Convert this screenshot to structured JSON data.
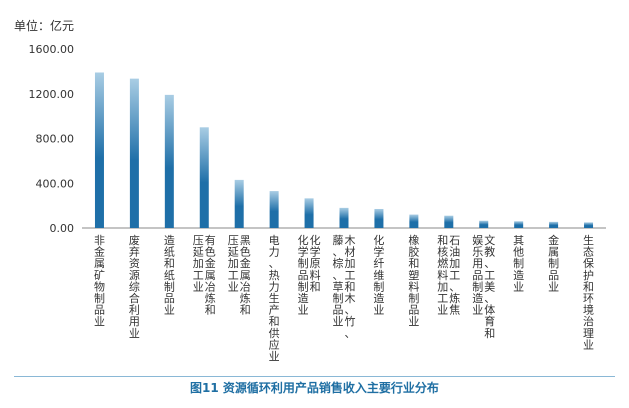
{
  "caption": "图11  资源循环利用产品销售收入主要行业分布",
  "chart_data": {
    "type": "bar",
    "unit_label": "单位：亿元",
    "ylim": [
      0,
      1600
    ],
    "yticks": [
      0,
      400,
      800,
      1200,
      1600
    ],
    "ytick_labels": [
      "0.00",
      "400.00",
      "800.00",
      "1200.00",
      "1600.00"
    ],
    "grid": false,
    "bar_color_top": "#a9cde4",
    "bar_color_bottom": "#1e6fa8",
    "categories": [
      "非金属矿物制品业",
      "废弃资源综合利用业",
      "造纸和纸制品业",
      "有色金属冶炼和压延加工业",
      "黑色金属冶炼和压延加工业",
      "电力、热力生产和供应业",
      "化学原料和化学制品制造业",
      "木材加工和木、竹、藤、棕、草制品业",
      "化学纤维制造业",
      "橡胶和塑料制品业",
      "石油加工、炼焦和核燃料加工业",
      "文教、工美、体育和娱乐用品制造业",
      "其他制造业",
      "金属制品业",
      "生态保护和环境治理业"
    ],
    "category_lines": [
      [
        "非金属矿物制品业"
      ],
      [
        "废弃资源综合利用业"
      ],
      [
        "造纸和纸制品业"
      ],
      [
        "有色金属冶炼和",
        "压延加工业"
      ],
      [
        "黑色金属冶炼和",
        "压延加工业"
      ],
      [
        "电力、热力生产和供应业"
      ],
      [
        "化学原料和",
        "化学制品制造业"
      ],
      [
        "木材加工和木、竹、",
        "藤、棕、草制品业"
      ],
      [
        "化学纤维制造业"
      ],
      [
        "橡胶和塑料制品业"
      ],
      [
        "石油加工、炼焦",
        "和核燃料加工业"
      ],
      [
        "文教、工美、体育和",
        "娱乐用品制造业"
      ],
      [
        "其他制造业"
      ],
      [
        "金属制品业"
      ],
      [
        "生态保护和环境治理业"
      ]
    ],
    "values": [
      1390,
      1335,
      1190,
      900,
      430,
      330,
      265,
      180,
      170,
      120,
      110,
      65,
      60,
      55,
      50
    ]
  }
}
